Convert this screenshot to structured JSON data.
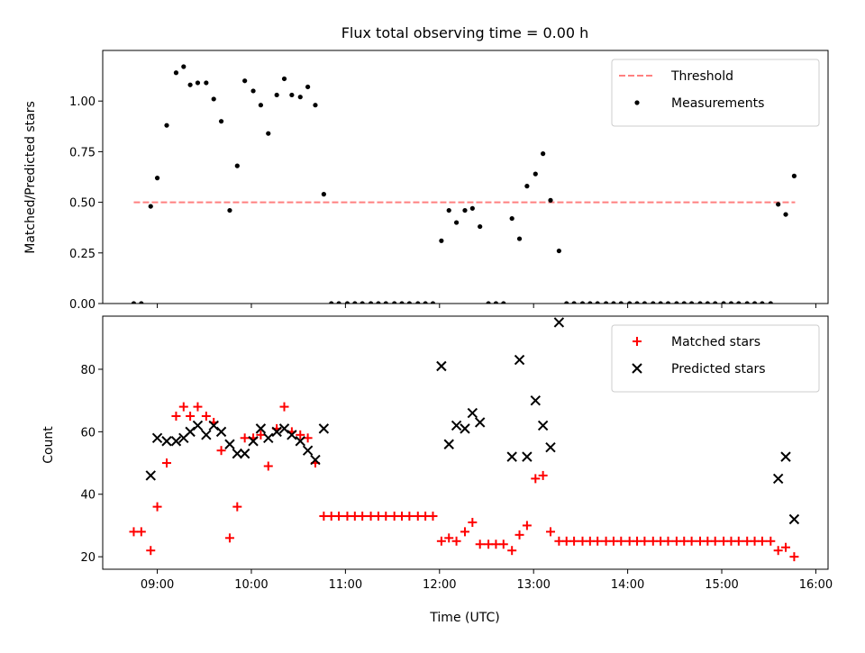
{
  "chart_data": [
    {
      "type": "scatter",
      "title": "Flux total observing time = 0.00 h",
      "xlabel": "",
      "ylabel": "Matched/Predicted stars",
      "xlim": [
        8.42,
        16.13
      ],
      "ylim": [
        0,
        1.25
      ],
      "x_ticks": [
        9,
        10,
        11,
        12,
        13,
        14,
        15,
        16
      ],
      "x_tick_labels": [
        "",
        "",
        "",
        "",
        "",
        "",
        "",
        ""
      ],
      "y_ticks": [
        0.0,
        0.25,
        0.5,
        0.75,
        1.0
      ],
      "y_tick_labels": [
        "0.00",
        "0.25",
        "0.50",
        "0.75",
        "1.00"
      ],
      "legend_position": "top-right",
      "threshold": {
        "name": "Threshold",
        "y": 0.5,
        "x_range": [
          8.75,
          15.78
        ],
        "color": "#ff8080",
        "style": "dashed"
      },
      "series": [
        {
          "name": "Measurements",
          "color": "#000000",
          "marker": "dot",
          "points": [
            [
              8.75,
              0.0
            ],
            [
              8.83,
              0.0
            ],
            [
              8.93,
              0.48
            ],
            [
              9.0,
              0.62
            ],
            [
              9.1,
              0.88
            ],
            [
              9.2,
              1.14
            ],
            [
              9.28,
              1.17
            ],
            [
              9.35,
              1.08
            ],
            [
              9.43,
              1.09
            ],
            [
              9.52,
              1.09
            ],
            [
              9.6,
              1.01
            ],
            [
              9.68,
              0.9
            ],
            [
              9.77,
              0.46
            ],
            [
              9.85,
              0.68
            ],
            [
              9.93,
              1.1
            ],
            [
              10.02,
              1.05
            ],
            [
              10.1,
              0.98
            ],
            [
              10.18,
              0.84
            ],
            [
              10.27,
              1.03
            ],
            [
              10.35,
              1.11
            ],
            [
              10.43,
              1.03
            ],
            [
              10.52,
              1.02
            ],
            [
              10.6,
              1.07
            ],
            [
              10.68,
              0.98
            ],
            [
              10.77,
              0.54
            ],
            [
              10.85,
              0.0
            ],
            [
              10.93,
              0.0
            ],
            [
              11.02,
              0.0
            ],
            [
              11.1,
              0.0
            ],
            [
              11.18,
              0.0
            ],
            [
              11.27,
              0.0
            ],
            [
              11.35,
              0.0
            ],
            [
              11.43,
              0.0
            ],
            [
              11.52,
              0.0
            ],
            [
              11.6,
              0.0
            ],
            [
              11.68,
              0.0
            ],
            [
              11.77,
              0.0
            ],
            [
              11.85,
              0.0
            ],
            [
              11.93,
              0.0
            ],
            [
              12.02,
              0.31
            ],
            [
              12.1,
              0.46
            ],
            [
              12.18,
              0.4
            ],
            [
              12.27,
              0.46
            ],
            [
              12.35,
              0.47
            ],
            [
              12.43,
              0.38
            ],
            [
              12.52,
              0.0
            ],
            [
              12.6,
              0.0
            ],
            [
              12.68,
              0.0
            ],
            [
              12.77,
              0.42
            ],
            [
              12.85,
              0.32
            ],
            [
              12.93,
              0.58
            ],
            [
              13.02,
              0.64
            ],
            [
              13.1,
              0.74
            ],
            [
              13.18,
              0.51
            ],
            [
              13.27,
              0.26
            ],
            [
              13.35,
              0.0
            ],
            [
              13.43,
              0.0
            ],
            [
              13.52,
              0.0
            ],
            [
              13.6,
              0.0
            ],
            [
              13.68,
              0.0
            ],
            [
              13.77,
              0.0
            ],
            [
              13.85,
              0.0
            ],
            [
              13.93,
              0.0
            ],
            [
              14.02,
              0.0
            ],
            [
              14.1,
              0.0
            ],
            [
              14.18,
              0.0
            ],
            [
              14.27,
              0.0
            ],
            [
              14.35,
              0.0
            ],
            [
              14.43,
              0.0
            ],
            [
              14.52,
              0.0
            ],
            [
              14.6,
              0.0
            ],
            [
              14.68,
              0.0
            ],
            [
              14.77,
              0.0
            ],
            [
              14.85,
              0.0
            ],
            [
              14.93,
              0.0
            ],
            [
              15.02,
              0.0
            ],
            [
              15.1,
              0.0
            ],
            [
              15.18,
              0.0
            ],
            [
              15.27,
              0.0
            ],
            [
              15.35,
              0.0
            ],
            [
              15.43,
              0.0
            ],
            [
              15.52,
              0.0
            ],
            [
              15.6,
              0.49
            ],
            [
              15.68,
              0.44
            ],
            [
              15.77,
              0.63
            ]
          ]
        }
      ]
    },
    {
      "type": "scatter",
      "title": "",
      "xlabel": "Time (UTC)",
      "ylabel": "Count",
      "xlim": [
        8.42,
        16.13
      ],
      "ylim": [
        16,
        97
      ],
      "x_ticks": [
        9,
        10,
        11,
        12,
        13,
        14,
        15,
        16
      ],
      "x_tick_labels": [
        "09:00",
        "10:00",
        "11:00",
        "12:00",
        "13:00",
        "14:00",
        "15:00",
        "16:00"
      ],
      "y_ticks": [
        20,
        40,
        60,
        80
      ],
      "y_tick_labels": [
        "20",
        "40",
        "60",
        "80"
      ],
      "legend_position": "top-right",
      "series": [
        {
          "name": "Matched stars",
          "color": "#ff0000",
          "marker": "plus",
          "points": [
            [
              8.75,
              28
            ],
            [
              8.83,
              28
            ],
            [
              8.93,
              22
            ],
            [
              9.0,
              36
            ],
            [
              9.1,
              50
            ],
            [
              9.2,
              65
            ],
            [
              9.28,
              68
            ],
            [
              9.35,
              65
            ],
            [
              9.43,
              68
            ],
            [
              9.52,
              65
            ],
            [
              9.6,
              63
            ],
            [
              9.68,
              54
            ],
            [
              9.77,
              26
            ],
            [
              9.85,
              36
            ],
            [
              9.93,
              58
            ],
            [
              10.02,
              58
            ],
            [
              10.1,
              59
            ],
            [
              10.18,
              49
            ],
            [
              10.27,
              61
            ],
            [
              10.35,
              68
            ],
            [
              10.43,
              60
            ],
            [
              10.52,
              59
            ],
            [
              10.6,
              58
            ],
            [
              10.68,
              50
            ],
            [
              10.77,
              33
            ],
            [
              10.85,
              33
            ],
            [
              10.93,
              33
            ],
            [
              11.02,
              33
            ],
            [
              11.1,
              33
            ],
            [
              11.18,
              33
            ],
            [
              11.27,
              33
            ],
            [
              11.35,
              33
            ],
            [
              11.43,
              33
            ],
            [
              11.52,
              33
            ],
            [
              11.6,
              33
            ],
            [
              11.68,
              33
            ],
            [
              11.77,
              33
            ],
            [
              11.85,
              33
            ],
            [
              11.93,
              33
            ],
            [
              12.02,
              25
            ],
            [
              12.1,
              26
            ],
            [
              12.18,
              25
            ],
            [
              12.27,
              28
            ],
            [
              12.35,
              31
            ],
            [
              12.43,
              24
            ],
            [
              12.52,
              24
            ],
            [
              12.6,
              24
            ],
            [
              12.68,
              24
            ],
            [
              12.77,
              22
            ],
            [
              12.85,
              27
            ],
            [
              12.93,
              30
            ],
            [
              13.02,
              45
            ],
            [
              13.1,
              46
            ],
            [
              13.18,
              28
            ],
            [
              13.27,
              25
            ],
            [
              13.35,
              25
            ],
            [
              13.43,
              25
            ],
            [
              13.52,
              25
            ],
            [
              13.6,
              25
            ],
            [
              13.68,
              25
            ],
            [
              13.77,
              25
            ],
            [
              13.85,
              25
            ],
            [
              13.93,
              25
            ],
            [
              14.02,
              25
            ],
            [
              14.1,
              25
            ],
            [
              14.18,
              25
            ],
            [
              14.27,
              25
            ],
            [
              14.35,
              25
            ],
            [
              14.43,
              25
            ],
            [
              14.52,
              25
            ],
            [
              14.6,
              25
            ],
            [
              14.68,
              25
            ],
            [
              14.77,
              25
            ],
            [
              14.85,
              25
            ],
            [
              14.93,
              25
            ],
            [
              15.02,
              25
            ],
            [
              15.1,
              25
            ],
            [
              15.18,
              25
            ],
            [
              15.27,
              25
            ],
            [
              15.35,
              25
            ],
            [
              15.43,
              25
            ],
            [
              15.52,
              25
            ],
            [
              15.6,
              22
            ],
            [
              15.68,
              23
            ],
            [
              15.77,
              20
            ]
          ]
        },
        {
          "name": "Predicted stars",
          "color": "#000000",
          "marker": "x",
          "points": [
            [
              8.93,
              46
            ],
            [
              9.0,
              58
            ],
            [
              9.1,
              57
            ],
            [
              9.2,
              57
            ],
            [
              9.28,
              58
            ],
            [
              9.35,
              60
            ],
            [
              9.43,
              62
            ],
            [
              9.52,
              59
            ],
            [
              9.6,
              62
            ],
            [
              9.68,
              60
            ],
            [
              9.77,
              56
            ],
            [
              9.85,
              53
            ],
            [
              9.93,
              53
            ],
            [
              10.02,
              57
            ],
            [
              10.1,
              61
            ],
            [
              10.18,
              58
            ],
            [
              10.27,
              60
            ],
            [
              10.35,
              61
            ],
            [
              10.43,
              59
            ],
            [
              10.52,
              57
            ],
            [
              10.6,
              54
            ],
            [
              10.68,
              51
            ],
            [
              10.77,
              61
            ],
            [
              12.02,
              81
            ],
            [
              12.1,
              56
            ],
            [
              12.18,
              62
            ],
            [
              12.27,
              61
            ],
            [
              12.35,
              66
            ],
            [
              12.43,
              63
            ],
            [
              12.77,
              52
            ],
            [
              12.85,
              83
            ],
            [
              12.93,
              52
            ],
            [
              13.02,
              70
            ],
            [
              13.1,
              62
            ],
            [
              13.18,
              55
            ],
            [
              13.27,
              95
            ],
            [
              15.6,
              45
            ],
            [
              15.68,
              52
            ],
            [
              15.77,
              32
            ]
          ]
        }
      ]
    }
  ]
}
